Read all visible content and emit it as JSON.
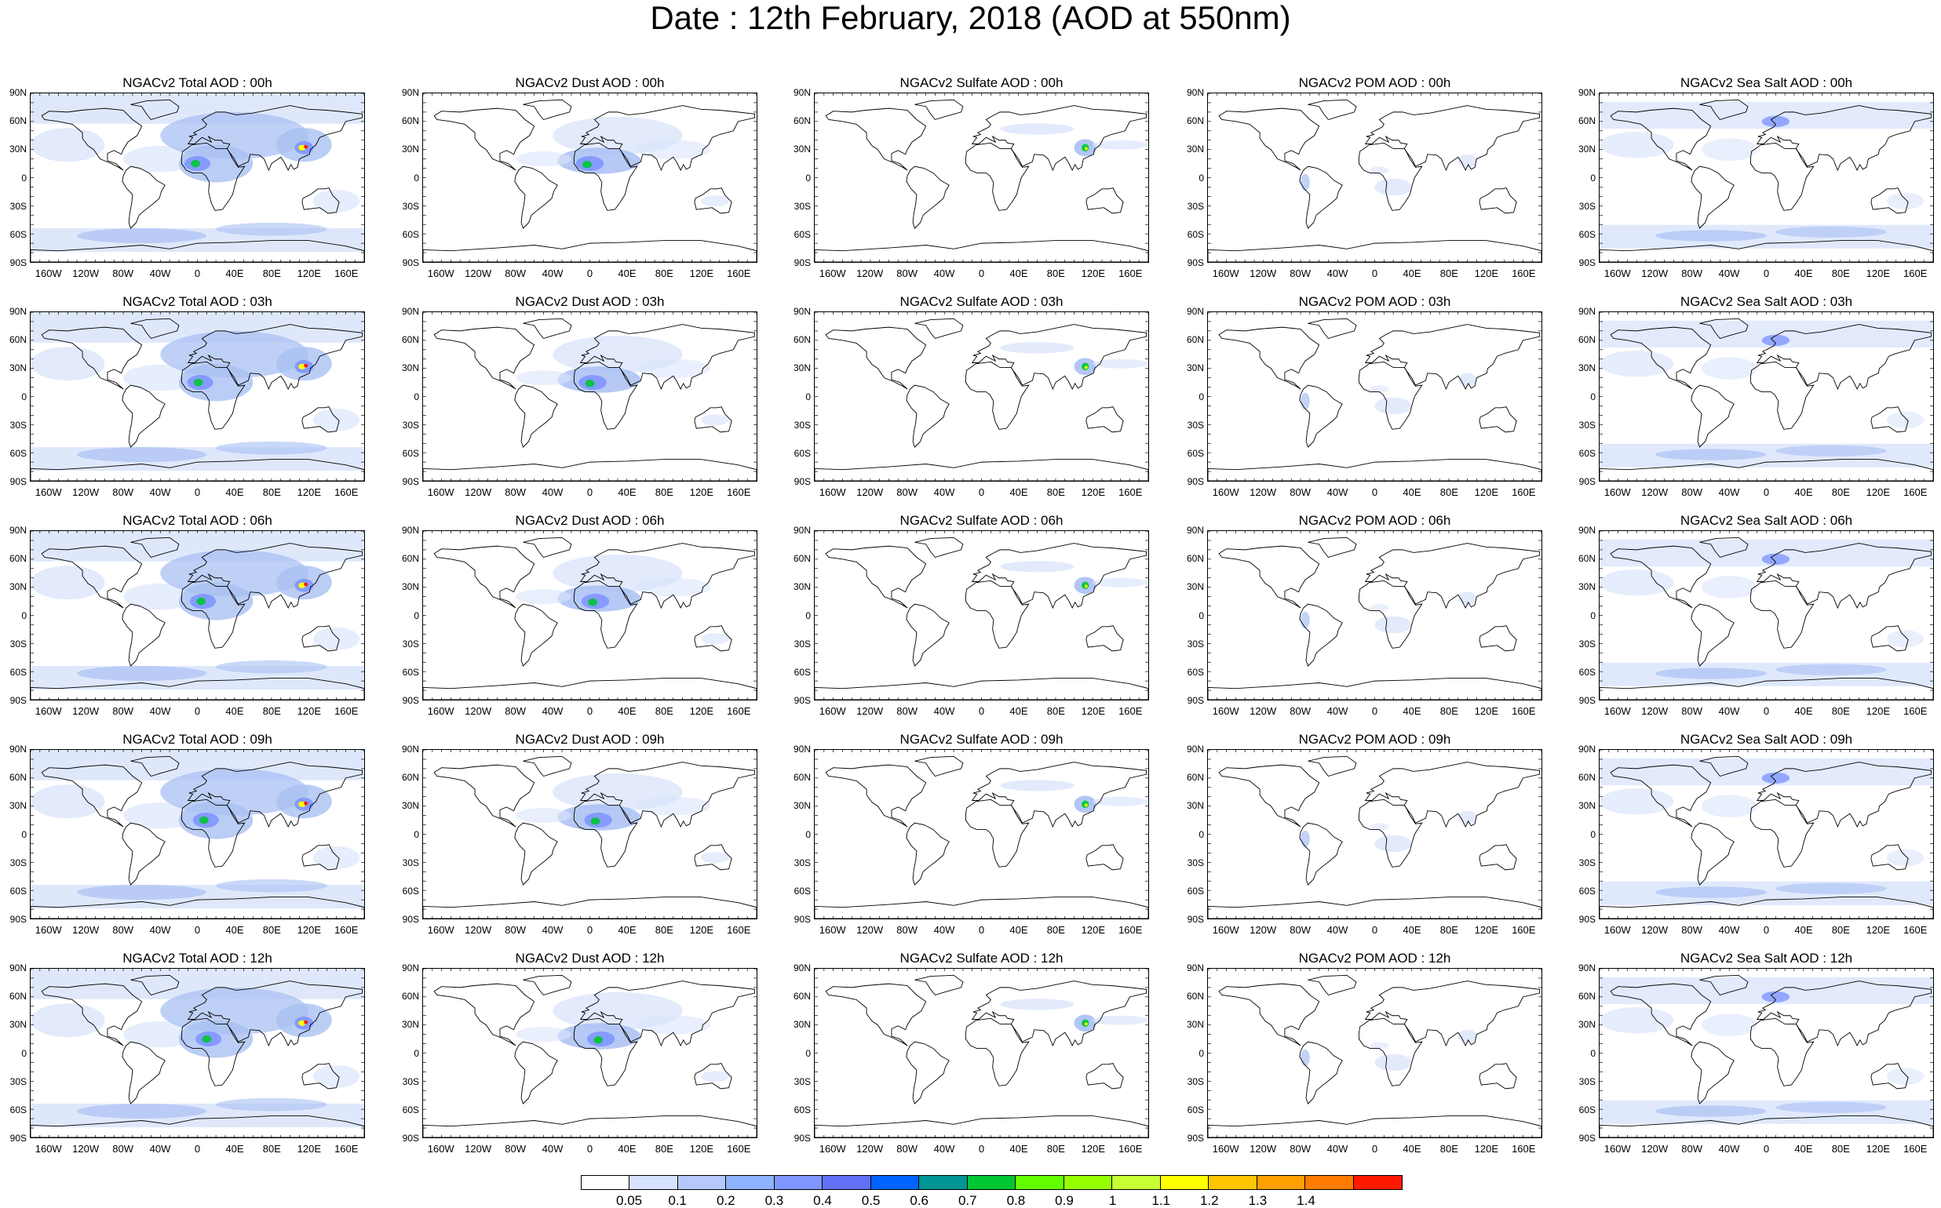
{
  "title": "Date : 12th February, 2018 (AOD at 550nm)",
  "lat_labels": [
    "90N",
    "60N",
    "30N",
    "0",
    "30S",
    "60S",
    "90S"
  ],
  "lon_labels": [
    "160W",
    "120W",
    "80W",
    "40W",
    "0",
    "40E",
    "80E",
    "120E",
    "160E"
  ],
  "panels": [
    [
      "NGACv2 Total AOD : 00h",
      "NGACv2 Dust AOD : 00h",
      "NGACv2 Sulfate AOD : 00h",
      "NGACv2 POM AOD : 00h",
      "NGACv2 Sea Salt AOD : 00h"
    ],
    [
      "NGACv2 Total AOD : 03h",
      "NGACv2 Dust AOD : 03h",
      "NGACv2 Sulfate AOD : 03h",
      "NGACv2 POM AOD : 03h",
      "NGACv2 Sea Salt AOD : 03h"
    ],
    [
      "NGACv2 Total AOD : 06h",
      "NGACv2 Dust AOD : 06h",
      "NGACv2 Sulfate AOD : 06h",
      "NGACv2 POM AOD : 06h",
      "NGACv2 Sea Salt AOD : 06h"
    ],
    [
      "NGACv2 Total AOD : 09h",
      "NGACv2 Dust AOD : 09h",
      "NGACv2 Sulfate AOD : 09h",
      "NGACv2 POM AOD : 09h",
      "NGACv2 Sea Salt  AOD : 09h"
    ],
    [
      "NGACv2 Total AOD : 12h",
      "NGACv2 Dust AOD : 12h",
      "NGACv2 Sulfate AOD : 12h",
      "NGACv2 POM  AOD : 12h",
      "NGACv2 Sea Salt AOD : 12h"
    ]
  ],
  "colorbar": {
    "labels": [
      "0.05",
      "0.1",
      "0.2",
      "0.3",
      "0.4",
      "0.5",
      "0.6",
      "0.7",
      "0.8",
      "0.9",
      "1",
      "1.1",
      "1.2",
      "1.3",
      "1.4"
    ],
    "colors": [
      "#ffffff",
      "#d6e2ff",
      "#b5c9ff",
      "#8eb2ff",
      "#7f96ff",
      "#6370f8",
      "#0063ff",
      "#009696",
      "#00c633",
      "#63ff00",
      "#96ff00",
      "#c6ff33",
      "#ffff00",
      "#ffc600",
      "#ffa000",
      "#ff7c00",
      "#ff1900"
    ]
  },
  "layer_colors": {
    "total_light": "#dbe5fb",
    "total_mid": "#a9c0f3",
    "total_dark": "#7f96ff",
    "hotspot_green": "#00c633",
    "hotspot_yellow": "#ffff00",
    "hotspot_red": "#ff1900"
  }
}
